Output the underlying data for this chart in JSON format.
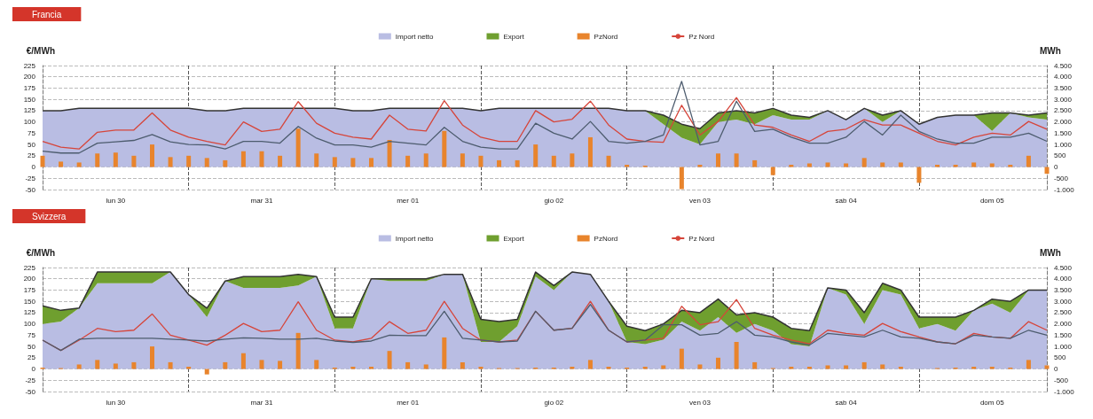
{
  "chart_data": [
    {
      "type": "line",
      "title": "Francia",
      "ylabel": "€/MWh",
      "y2label": "MWh",
      "legend": "top",
      "grid": true,
      "stacked": true,
      "categories": [
        null,
        null,
        null,
        null,
        "lun 30",
        null,
        null,
        null,
        null,
        null,
        null,
        null,
        "mar 31",
        null,
        null,
        null,
        null,
        null,
        null,
        null,
        "mer 01",
        null,
        null,
        null,
        null,
        null,
        null,
        null,
        "gio 02",
        null,
        null,
        null,
        null,
        null,
        null,
        null,
        "ven 03",
        null,
        null,
        null,
        null,
        null,
        null,
        null,
        "sab 04",
        null,
        null,
        null,
        null,
        null,
        null,
        null,
        "dom 05",
        null,
        null,
        null
      ],
      "ylim": [
        -50,
        225
      ],
      "yticks": [
        -50,
        -25,
        0,
        25,
        50,
        75,
        100,
        125,
        150,
        175,
        200,
        225
      ],
      "y2lim": [
        -1000,
        4500
      ],
      "y2ticks": [
        {
          "value": -1000,
          "label": "-1.000"
        },
        -500,
        0,
        500,
        {
          "value": 1000,
          "label": "1.000"
        },
        {
          "value": 1500,
          "label": "1.500"
        },
        {
          "value": 2000,
          "label": "2.000"
        },
        {
          "value": 2500,
          "label": "2.500"
        },
        {
          "value": 3000,
          "label": "3.000"
        },
        {
          "value": 3500,
          "label": "3.500"
        },
        {
          "value": 4000,
          "label": "4.000"
        },
        {
          "value": 4500,
          "label": "4.500"
        }
      ],
      "series": [
        {
          "name": "Import netto",
          "type": "area",
          "axis": "y2",
          "color": "#b9bde3",
          "values": [
            2500,
            2500,
            2600,
            2600,
            2600,
            2600,
            2600,
            2600,
            2600,
            2500,
            2500,
            2600,
            2600,
            2600,
            2600,
            2600,
            2600,
            2500,
            2500,
            2600,
            2600,
            2600,
            2600,
            2600,
            2500,
            2600,
            2600,
            2600,
            2600,
            2600,
            2600,
            2600,
            2500,
            2500,
            1900,
            1300,
            1000,
            2000,
            2100,
            1900,
            2300,
            2100,
            2100,
            2500,
            2100,
            2600,
            2000,
            2500,
            1900,
            2200,
            2300,
            2300,
            1600,
            2400,
            2200,
            2100
          ]
        },
        {
          "name": "Export",
          "type": "area",
          "axis": "y2",
          "color": "#6f9f2f",
          "values": [
            0,
            0,
            0,
            0,
            0,
            0,
            0,
            0,
            0,
            0,
            0,
            0,
            0,
            0,
            0,
            0,
            0,
            0,
            0,
            0,
            0,
            0,
            0,
            0,
            0,
            0,
            0,
            0,
            0,
            0,
            0,
            0,
            0,
            0,
            400,
            600,
            700,
            400,
            400,
            500,
            300,
            200,
            100,
            0,
            0,
            0,
            300,
            0,
            0,
            0,
            0,
            0,
            800,
            0,
            100,
            300
          ]
        },
        {
          "name": "PzNord",
          "type": "bar",
          "color": "#e8842c",
          "values": [
            25,
            12,
            10,
            30,
            32,
            25,
            50,
            22,
            25,
            20,
            15,
            35,
            35,
            25,
            85,
            30,
            22,
            20,
            20,
            60,
            25,
            30,
            80,
            30,
            25,
            15,
            15,
            50,
            25,
            30,
            66,
            25,
            5,
            3,
            0,
            -49,
            5,
            30,
            30,
            15,
            -18,
            5,
            8,
            10,
            8,
            20,
            10,
            10,
            -35,
            5,
            5,
            10,
            8,
            5,
            25,
            -15
          ]
        },
        {
          "name": "Pz Nord",
          "color": "#d6453a",
          "values": [
            57,
            44,
            40,
            77,
            82,
            82,
            120,
            82,
            66,
            57,
            49,
            100,
            79,
            84,
            145,
            97,
            75,
            66,
            62,
            115,
            84,
            80,
            147,
            93,
            66,
            57,
            57,
            125,
            100,
            106,
            146,
            93,
            62,
            57,
            55,
            137,
            71,
            101,
            154,
            93,
            88,
            71,
            57,
            79,
            84,
            105,
            93,
            93,
            75,
            57,
            49,
            66,
            75,
            71,
            101,
            84
          ]
        },
        {
          "color": "#4d5c6e",
          "values": [
            35,
            31,
            31,
            53,
            56,
            59,
            72,
            56,
            50,
            49,
            40,
            57,
            57,
            53,
            90,
            64,
            49,
            49,
            44,
            57,
            53,
            49,
            88,
            57,
            44,
            40,
            40,
            97,
            75,
            62,
            101,
            57,
            53,
            57,
            71,
            190,
            49,
            57,
            146,
            79,
            84,
            66,
            53,
            53,
            66,
            101,
            71,
            115,
            79,
            62,
            53,
            53,
            66,
            66,
            75,
            57
          ]
        }
      ]
    },
    {
      "type": "line",
      "title": "Svizzera",
      "ylabel": "€/MWh",
      "y2label": "MWh",
      "legend": "top",
      "grid": true,
      "stacked": true,
      "categories": [
        null,
        null,
        null,
        null,
        "lun 30",
        null,
        null,
        null,
        null,
        null,
        null,
        null,
        "mar 31",
        null,
        null,
        null,
        null,
        null,
        null,
        null,
        "mer 01",
        null,
        null,
        null,
        null,
        null,
        null,
        null,
        "gio 02",
        null,
        null,
        null,
        null,
        null,
        null,
        null,
        "ven 03",
        null,
        null,
        null,
        null,
        null,
        null,
        null,
        "sab 04",
        null,
        null,
        null,
        null,
        null,
        null,
        null,
        "dom 05",
        null,
        null,
        null
      ],
      "ylim": [
        -50,
        225
      ],
      "yticks": [
        -50,
        -25,
        0,
        25,
        50,
        75,
        100,
        125,
        150,
        175,
        200,
        225
      ],
      "y2lim": [
        -1000,
        4500
      ],
      "y2ticks": [
        {
          "value": -1000,
          "label": "-1.000"
        },
        -500,
        0,
        500,
        {
          "value": 1000,
          "label": "1.000"
        },
        {
          "value": 1500,
          "label": "1.500"
        },
        {
          "value": 2000,
          "label": "2.000"
        },
        {
          "value": 2500,
          "label": "2.500"
        },
        {
          "value": 3000,
          "label": "3.000"
        },
        {
          "value": 3500,
          "label": "3.500"
        },
        {
          "value": 4000,
          "label": "4.000"
        },
        {
          "value": 4500,
          "label": "4.500"
        }
      ],
      "series": [
        {
          "name": "Import netto",
          "type": "area",
          "axis": "y2",
          "color": "#b9bde3",
          "values": [
            2000,
            2100,
            2700,
            3800,
            3800,
            3800,
            3800,
            4300,
            3300,
            2300,
            3900,
            3600,
            3600,
            3600,
            3700,
            4100,
            1800,
            1800,
            4000,
            3900,
            3900,
            3900,
            4200,
            4200,
            1200,
            1200,
            1900,
            4100,
            3500,
            4300,
            4200,
            3000,
            1200,
            1100,
            1300,
            2100,
            1700,
            2300,
            1600,
            2000,
            1700,
            1100,
            1000,
            3600,
            3300,
            2000,
            3500,
            3300,
            1800,
            2000,
            1700,
            2600,
            2900,
            2500,
            3500,
            3500
          ]
        },
        {
          "name": "Export",
          "type": "area",
          "axis": "y2",
          "color": "#6f9f2f",
          "values": [
            800,
            500,
            0,
            500,
            500,
            500,
            500,
            0,
            0,
            400,
            0,
            500,
            500,
            500,
            500,
            0,
            500,
            500,
            0,
            100,
            100,
            100,
            0,
            0,
            1000,
            900,
            300,
            200,
            200,
            0,
            0,
            0,
            700,
            600,
            700,
            500,
            800,
            800,
            800,
            500,
            600,
            700,
            700,
            0,
            200,
            500,
            300,
            200,
            500,
            300,
            600,
            0,
            200,
            500,
            0,
            0
          ]
        },
        {
          "name": "PzNord",
          "type": "bar",
          "color": "#e8842c",
          "values": [
            3,
            2,
            10,
            20,
            12,
            15,
            50,
            15,
            5,
            -12,
            15,
            35,
            20,
            18,
            80,
            20,
            3,
            5,
            5,
            40,
            15,
            10,
            70,
            15,
            5,
            2,
            2,
            3,
            3,
            5,
            20,
            5,
            3,
            5,
            8,
            45,
            10,
            25,
            60,
            15,
            2,
            5,
            5,
            8,
            8,
            15,
            10,
            5,
            0,
            2,
            3,
            5,
            5,
            3,
            20,
            8
          ]
        },
        {
          "name": "Pz Nord",
          "color": "#d6453a",
          "values": [
            64,
            41,
            64,
            90,
            83,
            86,
            122,
            75,
            64,
            53,
            75,
            101,
            83,
            86,
            149,
            86,
            64,
            60,
            68,
            105,
            79,
            86,
            150,
            90,
            64,
            60,
            64,
            128,
            86,
            90,
            150,
            86,
            60,
            64,
            68,
            139,
            98,
            105,
            154,
            90,
            75,
            64,
            56,
            86,
            79,
            75,
            101,
            83,
            71,
            60,
            56,
            79,
            71,
            68,
            105,
            86
          ]
        },
        {
          "color": "#4d5c6e",
          "values": [
            64,
            41,
            66,
            68,
            68,
            68,
            68,
            66,
            64,
            62,
            66,
            69,
            68,
            66,
            66,
            68,
            62,
            59,
            62,
            75,
            74,
            74,
            128,
            68,
            64,
            60,
            62,
            128,
            86,
            90,
            143,
            86,
            60,
            64,
            98,
            98,
            75,
            79,
            105,
            75,
            71,
            60,
            53,
            79,
            75,
            71,
            86,
            71,
            68,
            60,
            56,
            75,
            71,
            68,
            86,
            75
          ]
        }
      ]
    }
  ]
}
